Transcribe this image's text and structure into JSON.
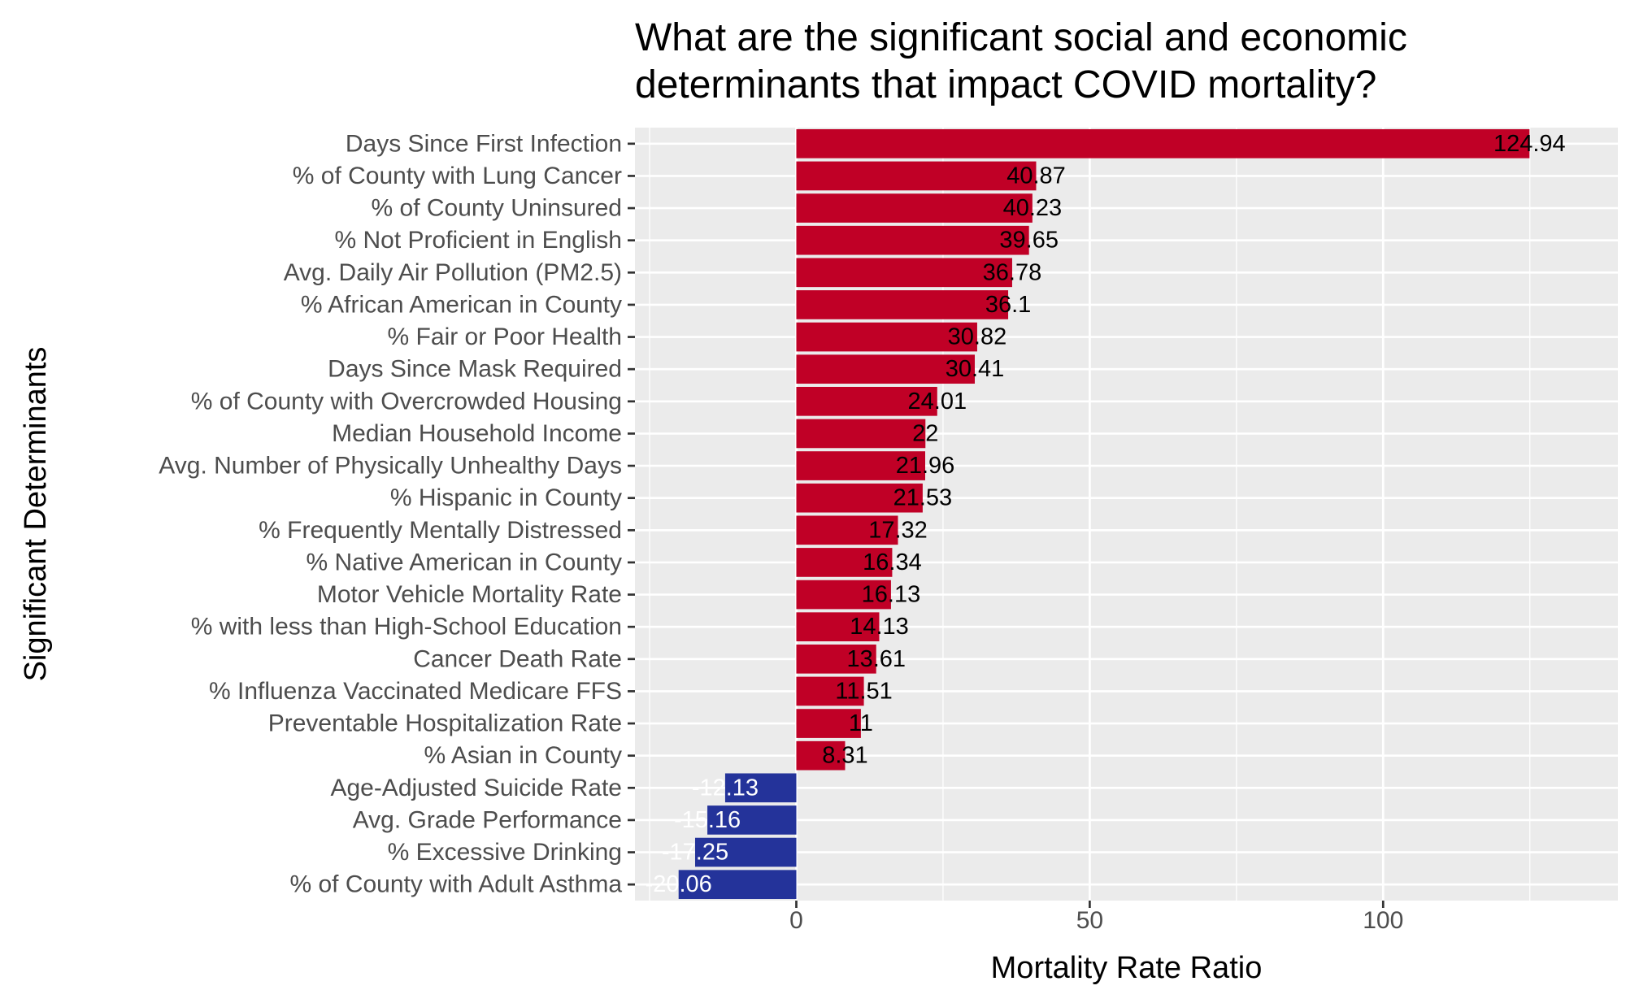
{
  "chart_data": {
    "type": "bar",
    "orientation": "horizontal",
    "title": "What are the significant social and economic determinants that impact COVID mortality?",
    "title_lines": [
      "What are the significant social and economic",
      "determinants that impact COVID mortality?"
    ],
    "xlabel": "Mortality Rate Ratio",
    "ylabel": "Significant Determinants",
    "xlim": [
      -27.5,
      140
    ],
    "xticks": [
      0,
      50,
      100
    ],
    "xtick_labels": [
      "0",
      "50",
      "100"
    ],
    "grid": true,
    "legend": "none",
    "colors": {
      "positive": "#C00026",
      "negative": "#24339A",
      "panel_background": "#EBEBEB",
      "grid": "#FFFFFF",
      "positive_label": "#000000",
      "negative_label": "#FFFFFF"
    },
    "categories": [
      "Days Since First Infection",
      "% of County with Lung Cancer",
      "% of County Uninsured",
      "% Not Proficient in English",
      "Avg. Daily Air Pollution (PM2.5)",
      "% African American in County",
      "% Fair or Poor Health",
      "Days Since Mask Required",
      "% of County with Overcrowded Housing",
      "Median Household Income",
      "Avg. Number of Physically Unhealthy Days",
      "% Hispanic in County",
      "% Frequently Mentally Distressed",
      "% Native American in County",
      "Motor Vehicle Mortality Rate",
      "% with less than High-School Education",
      "Cancer Death Rate",
      "% Influenza Vaccinated Medicare FFS",
      "Preventable Hospitalization Rate",
      "% Asian in County",
      "Age-Adjusted Suicide Rate",
      "Avg. Grade Performance",
      "% Excessive Drinking",
      "% of County with Adult Asthma"
    ],
    "values": [
      124.94,
      40.87,
      40.23,
      39.65,
      36.78,
      36.1,
      30.82,
      30.41,
      24.01,
      22,
      21.96,
      21.53,
      17.32,
      16.34,
      16.13,
      14.13,
      13.61,
      11.51,
      11,
      8.31,
      -12.13,
      -15.16,
      -17.25,
      -20.06
    ],
    "value_labels": [
      "124.94",
      "40.87",
      "40.23",
      "39.65",
      "36.78",
      "36.1",
      "30.82",
      "30.41",
      "24.01",
      "22",
      "21.96",
      "21.53",
      "17.32",
      "16.34",
      "16.13",
      "14.13",
      "13.61",
      "11.51",
      "11",
      "8.31",
      "-12.13",
      "-15.16",
      "-17.25",
      "-20.06"
    ]
  }
}
